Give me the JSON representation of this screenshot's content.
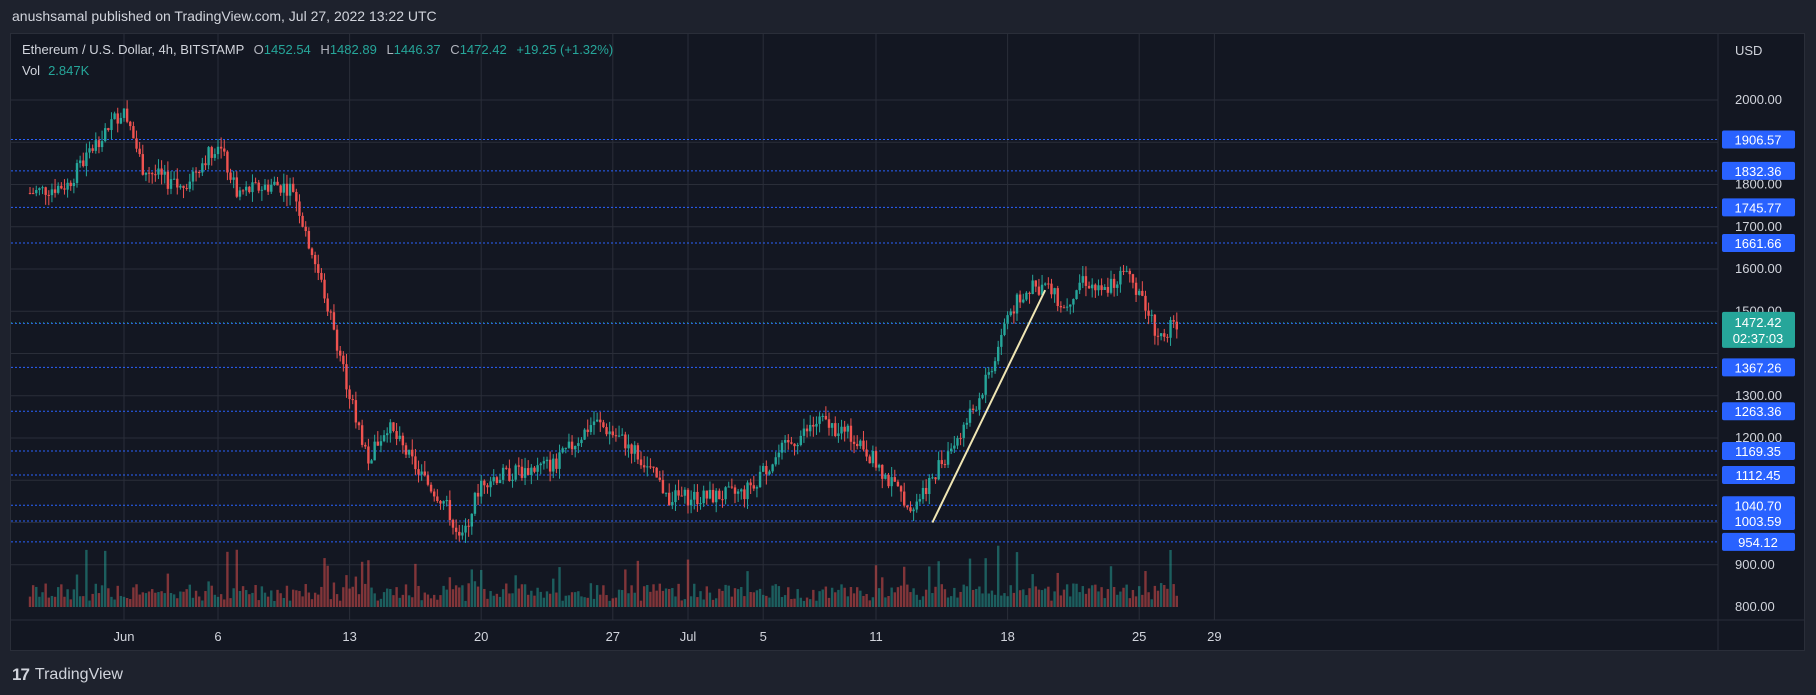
{
  "header": {
    "publish_line": "anushsamal published on TradingView.com, Jul 27, 2022 13:22 UTC"
  },
  "legend": {
    "symbol": "Ethereum / U.S. Dollar, 4h, BITSTAMP",
    "o_label": "O",
    "o_value": "1452.54",
    "h_label": "H",
    "h_value": "1482.89",
    "l_label": "L",
    "l_value": "1446.37",
    "c_label": "C",
    "c_value": "1472.42",
    "change": "+19.25 (+1.32%)",
    "vol_label": "Vol",
    "vol_value": "2.847K"
  },
  "footer": {
    "logo_text": "TradingView",
    "logo_mark": "17"
  },
  "colors": {
    "background": "#131722",
    "grid": "#2a2e39",
    "up": "#26a69a",
    "down": "#ef5350",
    "hline": "#2962ff",
    "trendline": "#f0e6b4",
    "text": "#d1d4dc"
  },
  "chart_data": {
    "type": "candlestick",
    "currency_label": "USD",
    "ylim": [
      800,
      2130
    ],
    "y_ticks": [
      "2000.00",
      "1800.00",
      "1700.00",
      "1600.00",
      "1500.00",
      "1300.00",
      "1200.00",
      "900.00",
      "800.00"
    ],
    "x_ticks": [
      "Jun",
      "6",
      "13",
      "20",
      "27",
      "Jul",
      "5",
      "11",
      "18",
      "25",
      "29"
    ],
    "horizontal_levels": [
      "1906.57",
      "1832.36",
      "1745.77",
      "1661.66",
      "1471.16",
      "1367.26",
      "1263.36",
      "1169.35",
      "1112.45",
      "1040.70",
      "1003.59",
      "954.12"
    ],
    "last_price": "1472.42",
    "countdown": "02:37:03",
    "trendline": {
      "from": {
        "date": "Jul 14",
        "price": 1000
      },
      "to": {
        "date": "Jul 20",
        "price": 1550
      }
    },
    "price_path": [
      {
        "date": "May 27",
        "price": 1780
      },
      {
        "date": "May 29",
        "price": 1800
      },
      {
        "date": "May 31",
        "price": 1930
      },
      {
        "date": "Jun 1",
        "price": 1980
      },
      {
        "date": "Jun 2",
        "price": 1840
      },
      {
        "date": "Jun 4",
        "price": 1790
      },
      {
        "date": "Jun 6",
        "price": 1900
      },
      {
        "date": "Jun 7",
        "price": 1780
      },
      {
        "date": "Jun 9",
        "price": 1800
      },
      {
        "date": "Jun 10",
        "price": 1790
      },
      {
        "date": "Jun 11",
        "price": 1640
      },
      {
        "date": "Jun 12",
        "price": 1490
      },
      {
        "date": "Jun 13",
        "price": 1300
      },
      {
        "date": "Jun 14",
        "price": 1150
      },
      {
        "date": "Jun 15",
        "price": 1230
      },
      {
        "date": "Jun 17",
        "price": 1100
      },
      {
        "date": "Jun 18",
        "price": 1050
      },
      {
        "date": "Jun 19",
        "price": 960
      },
      {
        "date": "Jun 20",
        "price": 1100
      },
      {
        "date": "Jun 22",
        "price": 1120
      },
      {
        "date": "Jun 24",
        "price": 1140
      },
      {
        "date": "Jun 26",
        "price": 1240
      },
      {
        "date": "Jun 28",
        "price": 1180
      },
      {
        "date": "Jun 30",
        "price": 1060
      },
      {
        "date": "Jul 2",
        "price": 1060
      },
      {
        "date": "Jul 4",
        "price": 1070
      },
      {
        "date": "Jul 6",
        "price": 1170
      },
      {
        "date": "Jul 8",
        "price": 1240
      },
      {
        "date": "Jul 10",
        "price": 1200
      },
      {
        "date": "Jul 12",
        "price": 1080
      },
      {
        "date": "Jul 13",
        "price": 1040
      },
      {
        "date": "Jul 14",
        "price": 1110
      },
      {
        "date": "Jul 16",
        "price": 1250
      },
      {
        "date": "Jul 17",
        "price": 1350
      },
      {
        "date": "Jul 18",
        "price": 1490
      },
      {
        "date": "Jul 19",
        "price": 1550
      },
      {
        "date": "Jul 20",
        "price": 1560
      },
      {
        "date": "Jul 21",
        "price": 1510
      },
      {
        "date": "Jul 22",
        "price": 1580
      },
      {
        "date": "Jul 23",
        "price": 1540
      },
      {
        "date": "Jul 24",
        "price": 1590
      },
      {
        "date": "Jul 25",
        "price": 1550
      },
      {
        "date": "Jul 26",
        "price": 1440
      },
      {
        "date": "Jul 27",
        "price": 1472
      }
    ]
  }
}
